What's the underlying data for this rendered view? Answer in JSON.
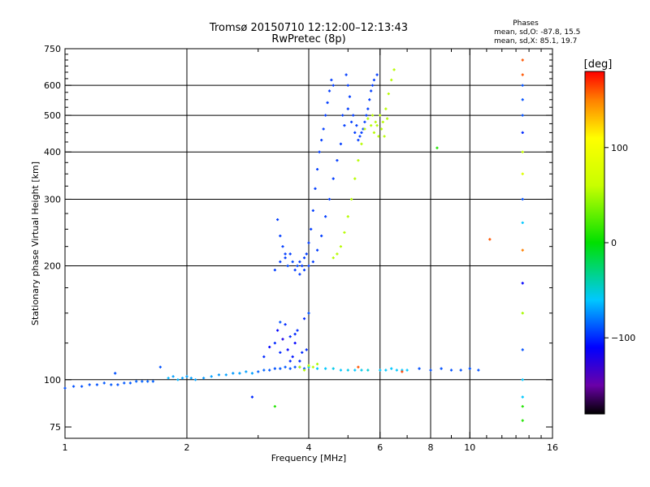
{
  "header": {
    "title_line1": "Tromsø 20150710 12:12:00–12:13:43",
    "title_line2": "RwPretec (8p)",
    "phases_title": "Phases",
    "phases_o": "mean, sd,O: -87.8, 15.5",
    "phases_x": "mean, sd,X:  85.1, 19.7"
  },
  "colorbar": {
    "label": "[deg]",
    "ticks": [
      {
        "value": 100,
        "label": "100"
      },
      {
        "value": 0,
        "label": "0"
      },
      {
        "value": -100,
        "label": "−100"
      }
    ],
    "range": [
      -180,
      180
    ]
  },
  "chart_data": {
    "type": "scatter",
    "xlabel": "Frequency [MHz]",
    "ylabel": "Stationary phase Virtual Height [km]",
    "xscale": "log",
    "yscale": "log",
    "xlim": [
      1,
      16
    ],
    "ylim": [
      70,
      750
    ],
    "xticks": [
      {
        "v": 1,
        "label": "1"
      },
      {
        "v": 2,
        "label": "2"
      },
      {
        "v": 4,
        "label": "4"
      },
      {
        "v": 6,
        "label": "6"
      },
      {
        "v": 8,
        "label": "8"
      },
      {
        "v": 10,
        "label": "10"
      },
      {
        "v": 16,
        "label": "16"
      }
    ],
    "xgrid": [
      2,
      4,
      6,
      8,
      10
    ],
    "yticks": [
      {
        "v": 75,
        "label": "75"
      },
      {
        "v": 100,
        "label": "100"
      },
      {
        "v": 200,
        "label": "200"
      },
      {
        "v": 300,
        "label": "300"
      },
      {
        "v": 400,
        "label": "400"
      },
      {
        "v": 500,
        "label": "500"
      },
      {
        "v": 600,
        "label": "600"
      },
      {
        "v": 750,
        "label": "750"
      }
    ],
    "ygrid": [
      100,
      200,
      300,
      400,
      500,
      600
    ],
    "grid": true,
    "color_by": "phase_deg",
    "series": [
      {
        "points": [
          [
            1.0,
            95,
            -90
          ],
          [
            1.05,
            96,
            -90
          ],
          [
            1.1,
            96,
            -90
          ],
          [
            1.15,
            97,
            -90
          ],
          [
            1.2,
            97,
            -90
          ],
          [
            1.25,
            98,
            -88
          ],
          [
            1.3,
            97,
            -88
          ],
          [
            1.35,
            97,
            -90
          ],
          [
            1.4,
            98,
            -88
          ],
          [
            1.45,
            98,
            -88
          ],
          [
            1.5,
            99,
            -86
          ],
          [
            1.55,
            99,
            -86
          ],
          [
            1.6,
            99,
            -86
          ],
          [
            1.65,
            99,
            -86
          ],
          [
            1.33,
            104,
            -90
          ],
          [
            1.72,
            108,
            -90
          ],
          [
            1.8,
            101,
            -65
          ],
          [
            1.85,
            102,
            -70
          ],
          [
            1.9,
            100,
            -65
          ],
          [
            1.95,
            101,
            -70
          ],
          [
            2.0,
            102,
            -70
          ],
          [
            2.05,
            101,
            -70
          ],
          [
            2.1,
            100,
            -70
          ],
          [
            2.2,
            101,
            -72
          ],
          [
            2.3,
            102,
            -70
          ],
          [
            2.4,
            103,
            -72
          ],
          [
            2.5,
            103,
            -70
          ],
          [
            2.6,
            104,
            -72
          ],
          [
            2.7,
            104,
            -70
          ],
          [
            2.8,
            105,
            -70
          ],
          [
            2.9,
            104,
            -70
          ],
          [
            3.0,
            105,
            -85
          ],
          [
            3.1,
            106,
            -85
          ],
          [
            3.2,
            106,
            -88
          ],
          [
            3.3,
            107,
            -90
          ],
          [
            3.4,
            107,
            -88
          ],
          [
            3.5,
            108,
            -88
          ],
          [
            3.6,
            107,
            -88
          ],
          [
            3.7,
            108,
            -90
          ],
          [
            3.8,
            108,
            -88
          ],
          [
            3.9,
            107,
            -90
          ],
          [
            4.0,
            108,
            -50
          ],
          [
            4.2,
            107,
            -60
          ],
          [
            4.4,
            107,
            -60
          ],
          [
            4.6,
            107,
            -55
          ],
          [
            4.8,
            106,
            -60
          ],
          [
            5.0,
            106,
            -55
          ],
          [
            5.2,
            106,
            -60
          ],
          [
            5.4,
            106,
            -55
          ],
          [
            5.6,
            106,
            -50
          ],
          [
            3.3,
            125,
            -100
          ],
          [
            3.35,
            135,
            -110
          ],
          [
            3.4,
            118,
            -100
          ],
          [
            3.45,
            128,
            -120
          ],
          [
            3.5,
            140,
            -100
          ],
          [
            3.55,
            120,
            -110
          ],
          [
            3.6,
            130,
            -100
          ],
          [
            3.65,
            115,
            -105
          ],
          [
            3.7,
            125,
            -110
          ],
          [
            3.75,
            135,
            -100
          ],
          [
            3.8,
            112,
            -100
          ],
          [
            3.9,
            145,
            -100
          ],
          [
            3.95,
            120,
            -100
          ],
          [
            3.1,
            115,
            -100
          ],
          [
            3.2,
            122,
            -110
          ],
          [
            3.4,
            142,
            -90
          ],
          [
            3.6,
            112,
            -100
          ],
          [
            3.7,
            132,
            -100
          ],
          [
            4.0,
            150,
            -90
          ],
          [
            3.85,
            118,
            -100
          ],
          [
            3.3,
            195,
            -95
          ],
          [
            3.4,
            205,
            -95
          ],
          [
            3.5,
            210,
            -95
          ],
          [
            3.55,
            200,
            -92
          ],
          [
            3.6,
            215,
            -95
          ],
          [
            3.65,
            205,
            -92
          ],
          [
            3.7,
            195,
            -95
          ],
          [
            3.75,
            200,
            -92
          ],
          [
            3.8,
            205,
            -95
          ],
          [
            3.85,
            200,
            -95
          ],
          [
            3.9,
            210,
            -95
          ],
          [
            3.95,
            215,
            -95
          ],
          [
            4.0,
            230,
            -95
          ],
          [
            4.05,
            250,
            -95
          ],
          [
            4.1,
            280,
            -95
          ],
          [
            4.15,
            320,
            -95
          ],
          [
            4.2,
            360,
            -95
          ],
          [
            4.25,
            400,
            -95
          ],
          [
            4.3,
            430,
            -95
          ],
          [
            4.35,
            460,
            -95
          ],
          [
            4.4,
            500,
            -95
          ],
          [
            4.45,
            540,
            -95
          ],
          [
            4.5,
            580,
            -95
          ],
          [
            4.55,
            620,
            -95
          ],
          [
            4.6,
            600,
            -95
          ],
          [
            3.35,
            265,
            -95
          ],
          [
            3.4,
            240,
            -95
          ],
          [
            3.45,
            225,
            -95
          ],
          [
            3.5,
            215,
            -95
          ],
          [
            3.8,
            190,
            -95
          ],
          [
            3.9,
            195,
            -95
          ],
          [
            4.0,
            200,
            -95
          ],
          [
            4.1,
            205,
            -95
          ],
          [
            4.2,
            220,
            -95
          ],
          [
            4.3,
            240,
            -95
          ],
          [
            4.4,
            270,
            -95
          ],
          [
            4.5,
            300,
            -95
          ],
          [
            4.6,
            340,
            -95
          ],
          [
            4.7,
            380,
            -95
          ],
          [
            4.8,
            420,
            -95
          ],
          [
            4.9,
            470,
            -95
          ],
          [
            5.0,
            520,
            -95
          ],
          [
            5.1,
            480,
            -95
          ],
          [
            5.2,
            450,
            -95
          ],
          [
            5.3,
            430,
            -95
          ],
          [
            5.4,
            450,
            -95
          ],
          [
            5.5,
            480,
            -95
          ],
          [
            5.6,
            520,
            -95
          ],
          [
            5.7,
            580,
            -95
          ],
          [
            5.8,
            620,
            -95
          ],
          [
            5.9,
            640,
            -95
          ],
          [
            5.0,
            600,
            -95
          ],
          [
            5.05,
            560,
            -95
          ],
          [
            4.95,
            640,
            -95
          ],
          [
            5.15,
            500,
            -95
          ],
          [
            5.25,
            470,
            -95
          ],
          [
            5.35,
            440,
            -95
          ],
          [
            5.45,
            460,
            -95
          ],
          [
            5.55,
            500,
            -95
          ],
          [
            5.65,
            550,
            -95
          ],
          [
            5.75,
            600,
            -95
          ],
          [
            4.85,
            500,
            -95
          ],
          [
            4.6,
            210,
            55
          ],
          [
            4.7,
            215,
            55
          ],
          [
            4.8,
            225,
            55
          ],
          [
            4.9,
            245,
            55
          ],
          [
            5.0,
            270,
            55
          ],
          [
            5.1,
            300,
            55
          ],
          [
            5.2,
            340,
            55
          ],
          [
            5.3,
            380,
            55
          ],
          [
            5.4,
            420,
            55
          ],
          [
            5.5,
            460,
            55
          ],
          [
            5.6,
            490,
            55
          ],
          [
            5.7,
            470,
            55
          ],
          [
            5.8,
            450,
            55
          ],
          [
            5.9,
            470,
            55
          ],
          [
            6.0,
            500,
            55
          ],
          [
            6.1,
            480,
            55
          ],
          [
            6.2,
            520,
            55
          ],
          [
            6.3,
            570,
            55
          ],
          [
            6.4,
            620,
            55
          ],
          [
            6.5,
            660,
            55
          ],
          [
            5.75,
            500,
            55
          ],
          [
            5.85,
            480,
            55
          ],
          [
            5.95,
            440,
            55
          ],
          [
            6.05,
            460,
            55
          ],
          [
            6.15,
            440,
            55
          ],
          [
            6.25,
            490,
            55
          ],
          [
            4.0,
            109,
            55
          ],
          [
            4.1,
            108,
            55
          ],
          [
            4.2,
            110,
            50
          ],
          [
            3.9,
            106,
            55
          ],
          [
            3.8,
            108,
            55
          ],
          [
            6.0,
            106,
            -60
          ],
          [
            6.2,
            106,
            -60
          ],
          [
            6.4,
            107,
            -60
          ],
          [
            6.6,
            106,
            -60
          ],
          [
            6.8,
            106,
            -60
          ],
          [
            7.0,
            106,
            -60
          ],
          [
            7.5,
            107,
            -90
          ],
          [
            8.0,
            106,
            -90
          ],
          [
            8.5,
            107,
            -90
          ],
          [
            9.0,
            106,
            -90
          ],
          [
            9.5,
            106,
            -90
          ],
          [
            10.0,
            107,
            -90
          ],
          [
            10.5,
            106,
            -90
          ],
          [
            8.3,
            410,
            10
          ],
          [
            11.2,
            235,
            160
          ],
          [
            5.3,
            108,
            160
          ],
          [
            6.8,
            105,
            165
          ],
          [
            13.5,
            100,
            -60
          ],
          [
            13.5,
            120,
            -90
          ],
          [
            13.5,
            150,
            50
          ],
          [
            13.5,
            180,
            -110
          ],
          [
            13.5,
            220,
            150
          ],
          [
            13.5,
            260,
            -60
          ],
          [
            13.5,
            300,
            -90
          ],
          [
            13.5,
            350,
            80
          ],
          [
            13.5,
            400,
            60
          ],
          [
            13.5,
            450,
            -100
          ],
          [
            13.5,
            500,
            -90
          ],
          [
            13.5,
            550,
            -90
          ],
          [
            13.5,
            600,
            -90
          ],
          [
            13.5,
            640,
            160
          ],
          [
            13.5,
            700,
            160
          ],
          [
            13.5,
            85,
            10
          ],
          [
            13.5,
            78,
            10
          ],
          [
            13.5,
            90,
            -60
          ],
          [
            2.9,
            90,
            -100
          ],
          [
            3.3,
            85,
            10
          ]
        ]
      }
    ]
  }
}
